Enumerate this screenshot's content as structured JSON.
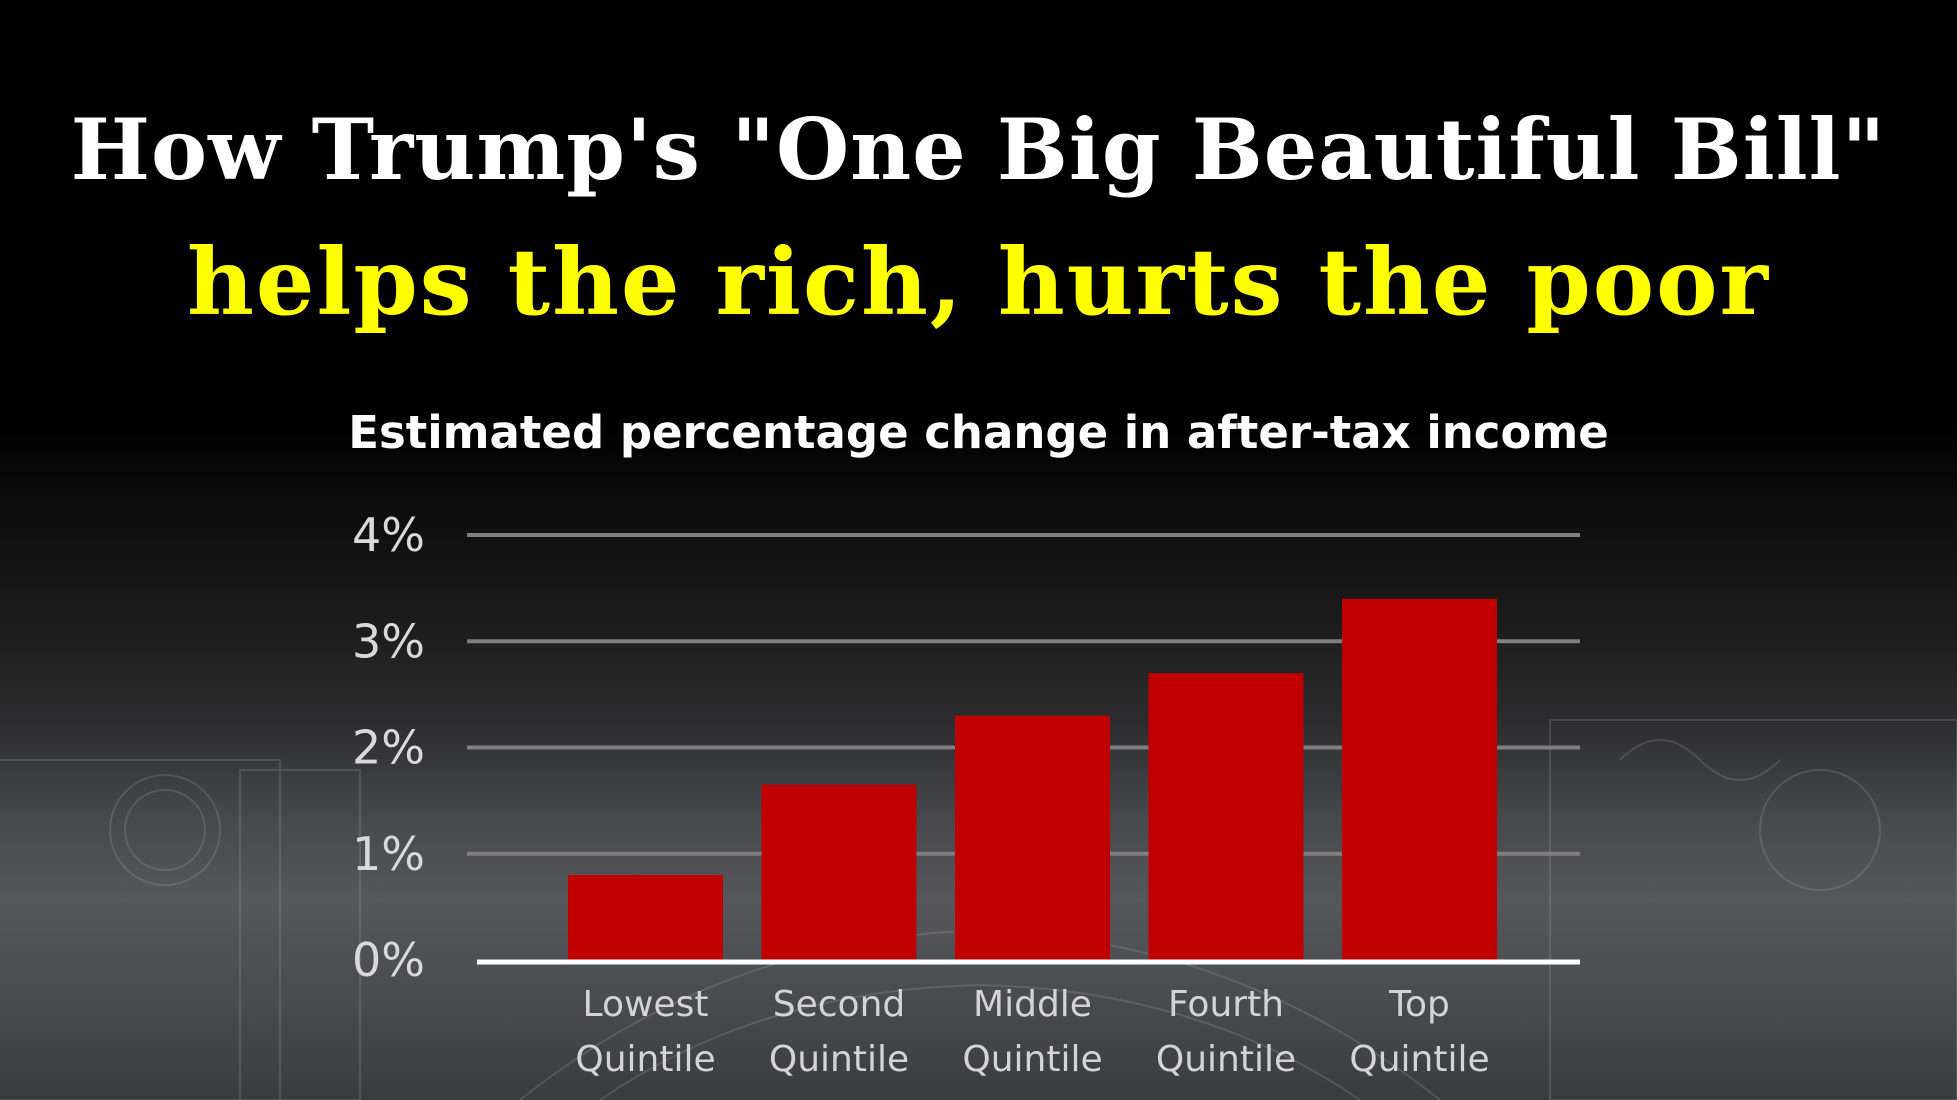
{
  "header": {
    "title_line1": "How Trump's \"One Big Beautiful Bill\"",
    "title_line2": "helps the rich, hurts the poor"
  },
  "colors": {
    "title_line1": "#ffffff",
    "title_line2": "#ffff00",
    "bar": "#c00000",
    "gridline": "#7f7f7f",
    "baseline": "#ffffff",
    "background": "#000000"
  },
  "chart_data": {
    "type": "bar",
    "title": "Estimated percentage change in after-tax income",
    "categories": [
      [
        "Lowest",
        "Quintile"
      ],
      [
        "Second",
        "Quintile"
      ],
      [
        "Middle",
        "Quintile"
      ],
      [
        "Fourth",
        "Quintile"
      ],
      [
        "Top",
        "Quintile"
      ]
    ],
    "values": [
      0.8,
      1.65,
      2.3,
      2.7,
      3.4
    ],
    "ylim": [
      0,
      4
    ],
    "yticks": [
      0,
      1,
      2,
      3,
      4
    ],
    "ytick_labels": [
      "0%",
      "1%",
      "2%",
      "3%",
      "4%"
    ],
    "xlabel": "",
    "ylabel": "",
    "grid": true,
    "legend": "none"
  }
}
